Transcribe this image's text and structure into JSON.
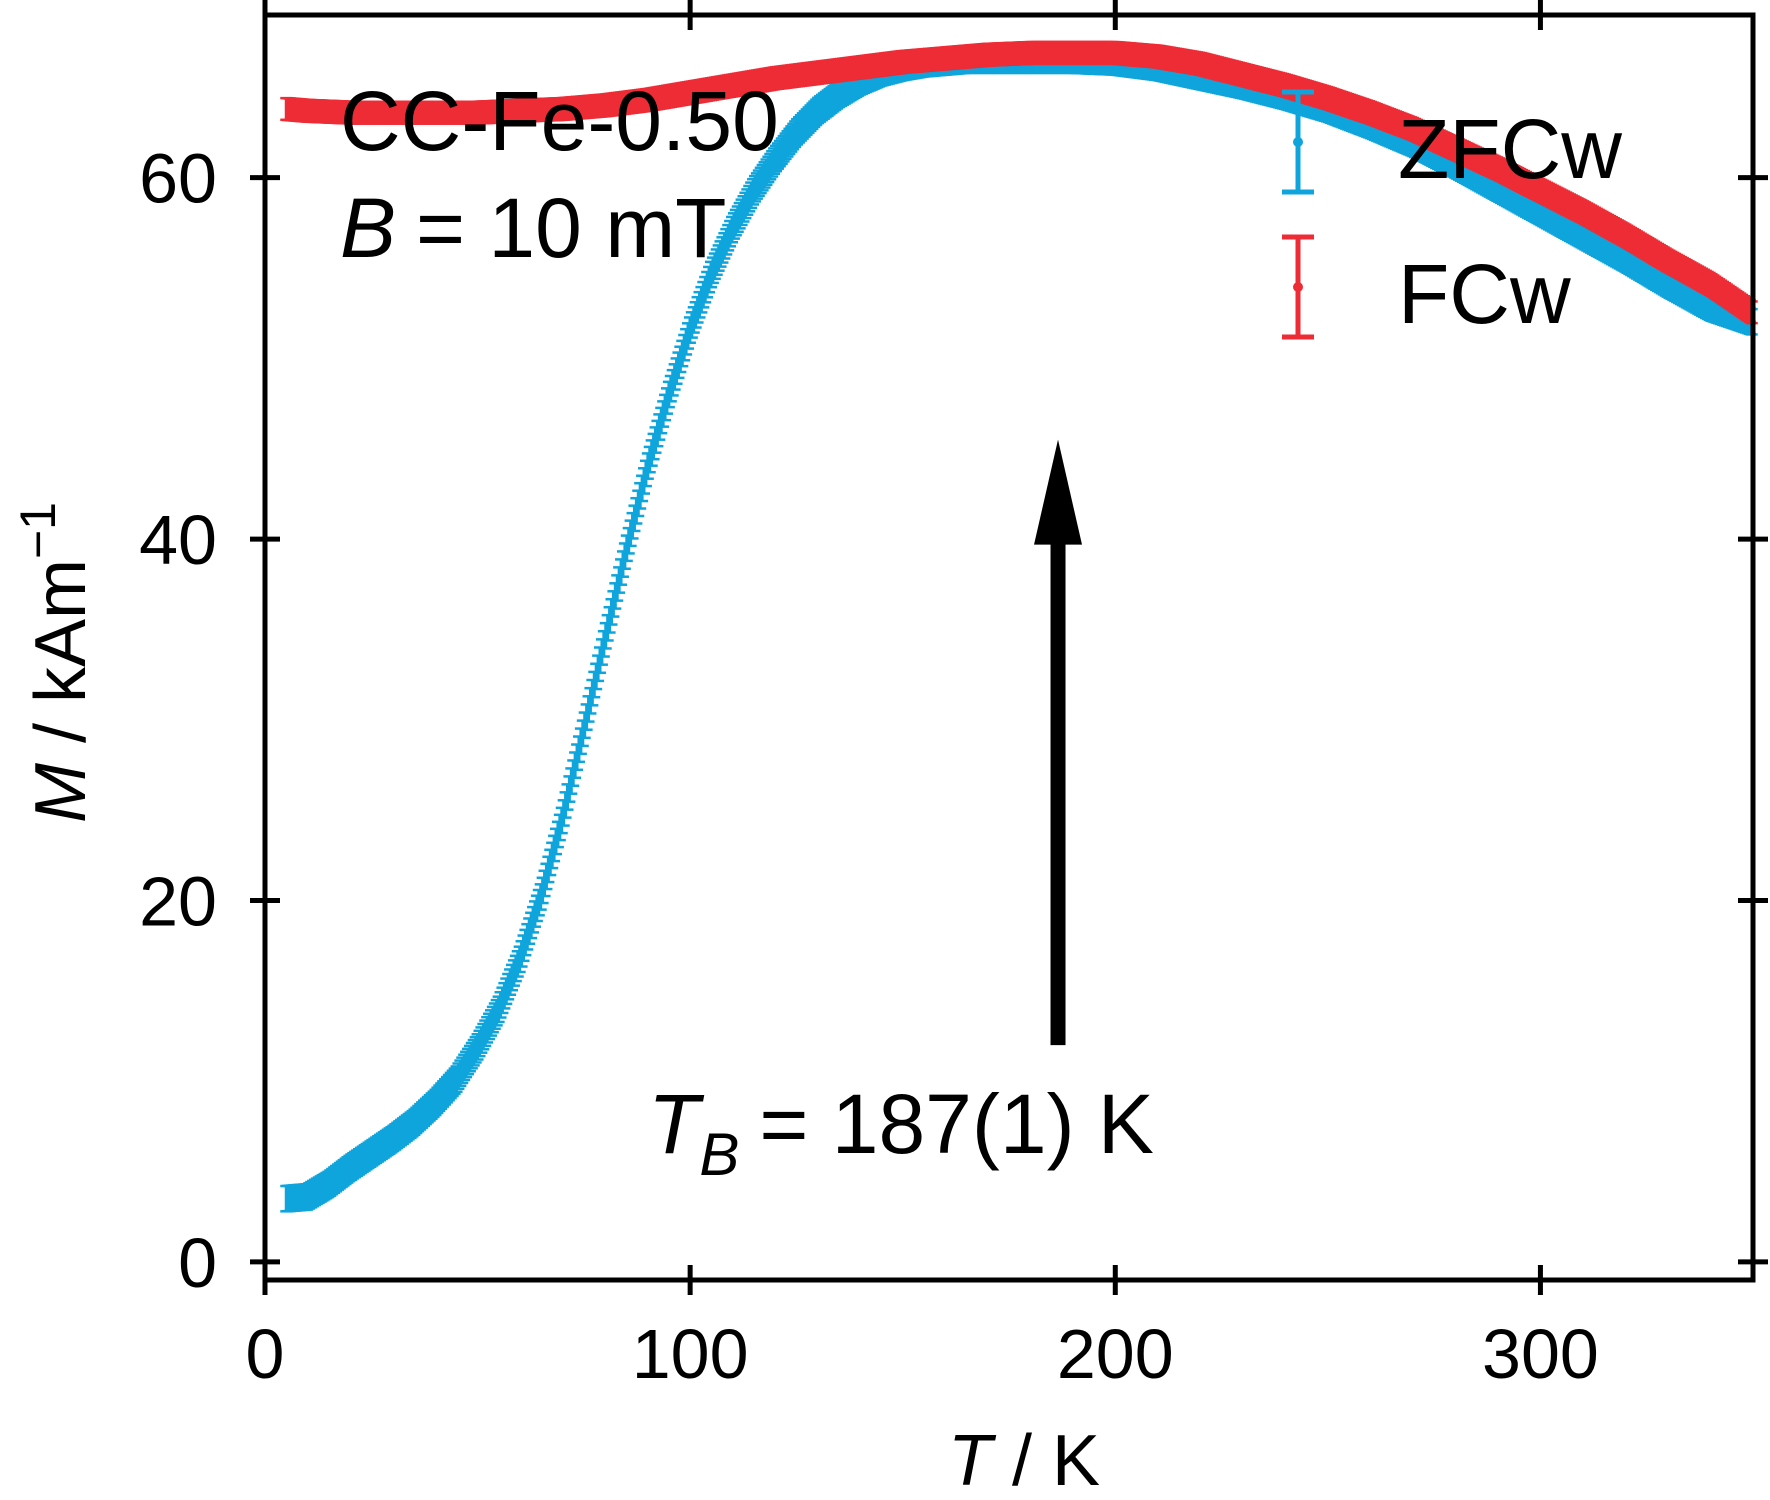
{
  "chart_data": {
    "type": "scatter",
    "title": "",
    "xlabel": {
      "symbol": "T",
      "unit": "K"
    },
    "ylabel": {
      "symbol": "M",
      "unit": "kAm",
      "unit_exp": "−1"
    },
    "xlim": [
      0,
      350
    ],
    "ylim": [
      -1,
      69
    ],
    "x_ticks": [
      0,
      100,
      200,
      300
    ],
    "x_tick_labels": [
      "0",
      "100",
      "200",
      "300"
    ],
    "y_ticks": [
      0,
      20,
      40,
      60
    ],
    "y_tick_labels": [
      "0",
      "20",
      "40",
      "60"
    ],
    "grid": false,
    "legend_position": "top-right",
    "annotations": {
      "sample": "CC-Fe-0.50",
      "field": {
        "symbol": "B",
        "rest": "= 10 mT"
      },
      "blocking": {
        "symbol": "T",
        "sub": "B",
        "rest": "= 187(1) K"
      },
      "arrow": {
        "x": 187,
        "y_from": 12,
        "y_to": 45.5
      }
    },
    "series": [
      {
        "name": "ZFCw",
        "color": "#0fa5dc",
        "x": [
          5,
          10,
          15,
          20,
          25,
          30,
          35,
          40,
          45,
          50,
          55,
          60,
          65,
          70,
          75,
          80,
          85,
          90,
          95,
          100,
          105,
          110,
          115,
          120,
          125,
          130,
          135,
          140,
          145,
          150,
          155,
          160,
          165,
          170,
          175,
          180,
          185,
          190,
          200,
          210,
          220,
          230,
          240,
          250,
          260,
          270,
          280,
          290,
          300,
          310,
          320,
          330,
          340,
          350
        ],
        "y": [
          3.5,
          3.6,
          4.3,
          5.2,
          6.0,
          6.8,
          7.7,
          8.8,
          10.1,
          11.9,
          14.0,
          16.8,
          20.3,
          24.6,
          29.5,
          34.5,
          39.4,
          44.0,
          48.0,
          51.6,
          54.7,
          57.2,
          59.3,
          61.0,
          62.5,
          63.7,
          64.6,
          65.3,
          65.8,
          66.1,
          66.3,
          66.4,
          66.5,
          66.5,
          66.5,
          66.5,
          66.5,
          66.5,
          66.4,
          66.1,
          65.6,
          65.1,
          64.5,
          63.8,
          62.9,
          61.9,
          60.7,
          59.4,
          58.1,
          56.8,
          55.5,
          54.1,
          52.8,
          52.0
        ],
        "error": 0.7
      },
      {
        "name": "FCw",
        "color": "#ee2c36",
        "x": [
          5,
          10,
          20,
          30,
          40,
          50,
          60,
          70,
          80,
          90,
          100,
          110,
          120,
          130,
          140,
          150,
          160,
          170,
          180,
          190,
          200,
          210,
          220,
          230,
          240,
          250,
          260,
          270,
          280,
          290,
          300,
          310,
          320,
          330,
          340,
          350
        ],
        "y": [
          63.8,
          63.7,
          63.6,
          63.6,
          63.6,
          63.6,
          63.7,
          63.8,
          64.0,
          64.3,
          64.7,
          65.1,
          65.5,
          65.8,
          66.1,
          66.4,
          66.6,
          66.8,
          66.9,
          66.9,
          66.9,
          66.7,
          66.3,
          65.7,
          65.1,
          64.4,
          63.6,
          62.7,
          61.6,
          60.5,
          59.3,
          58.1,
          56.8,
          55.4,
          54.1,
          52.5
        ],
        "error": 0.6
      }
    ]
  }
}
